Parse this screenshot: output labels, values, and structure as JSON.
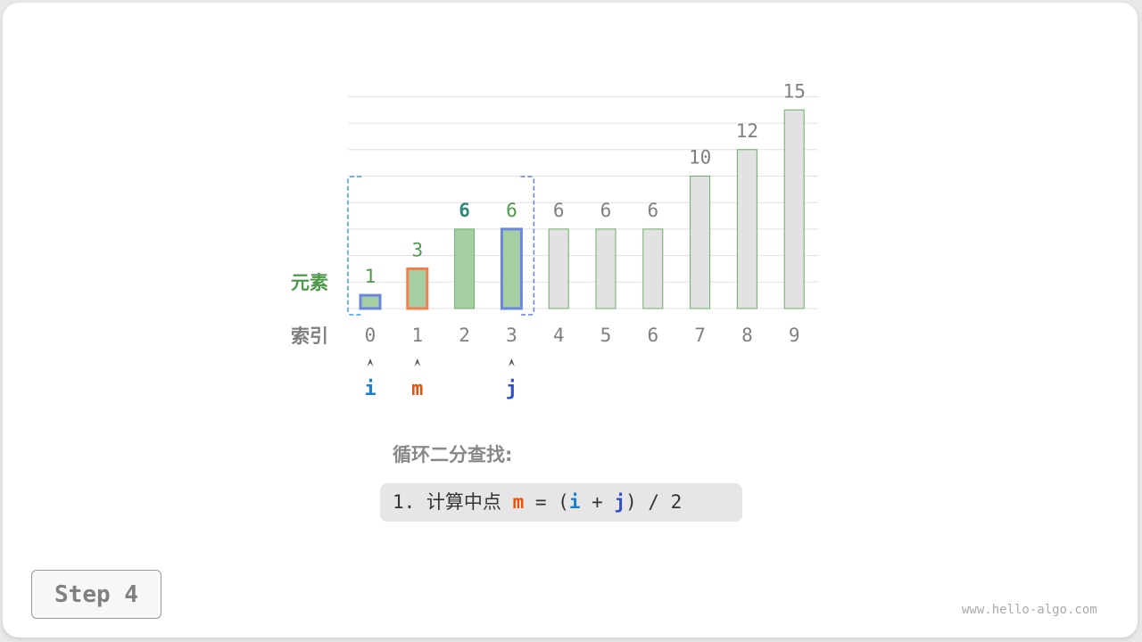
{
  "labels": {
    "element": "元素",
    "index": "索引"
  },
  "array": [
    1,
    3,
    6,
    6,
    6,
    6,
    6,
    10,
    12,
    15
  ],
  "pointers": [
    {
      "name": "i",
      "index": 0,
      "color": "#1a7fcc"
    },
    {
      "name": "m",
      "index": 1,
      "color": "#e8520f"
    },
    {
      "name": "j",
      "index": 3,
      "color": "#2f4fcf"
    }
  ],
  "range": {
    "from": 0,
    "to": 3
  },
  "highlight_value_index": 2,
  "colors": {
    "green_fill": "#a5cfa3",
    "green_border": "#6aae68",
    "grey_fill": "#e2e2e2",
    "i_border": "#6b86dd",
    "m_border": "#f28050",
    "label_green": "#4d9a4a",
    "label_teal": "#2e8a7a",
    "label_grey": "#808080"
  },
  "title": "循环二分查找:",
  "formula": {
    "prefix": "1. 计算中点 ",
    "m": "m",
    "eq": " = (",
    "i": "i",
    "plus": " + ",
    "j": "j",
    "suffix": ") / 2"
  },
  "step_label": "Step 4",
  "watermark": "www.hello-algo.com"
}
